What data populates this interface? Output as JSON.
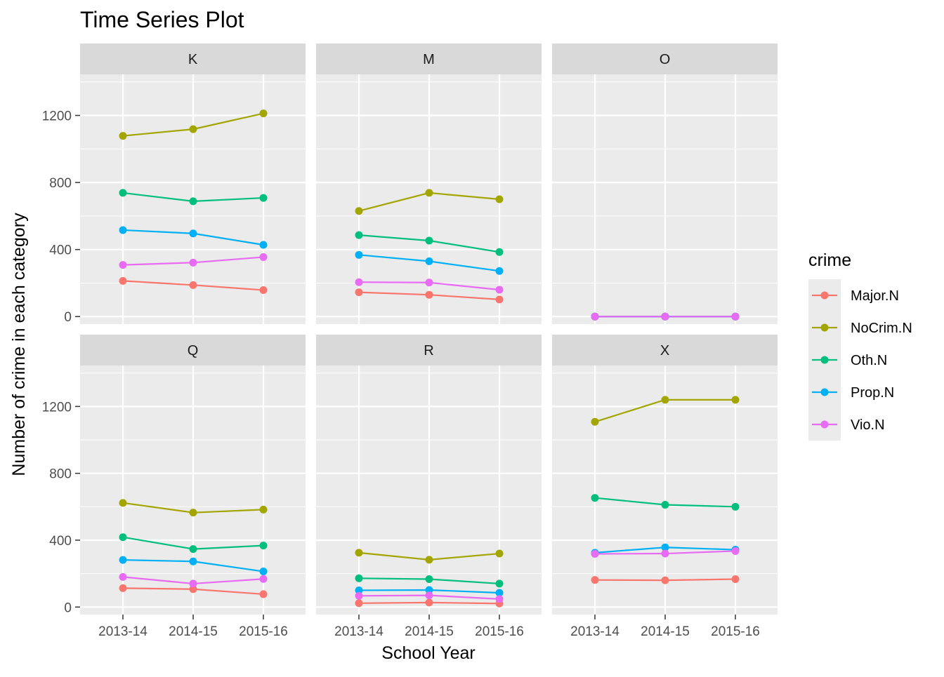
{
  "chart_data": {
    "type": "line",
    "title": "Time Series Plot",
    "xlabel": "School Year",
    "ylabel": "Number of crime in each category",
    "categories": [
      "2013-14",
      "2014-15",
      "2015-16"
    ],
    "ylim": [
      -45,
      1445
    ],
    "yticks": [
      0,
      400,
      800,
      1200
    ],
    "grid": true,
    "legend": {
      "title": "crime",
      "position": "right",
      "items": [
        {
          "name": "Major.N",
          "color": "#F8766D"
        },
        {
          "name": "NoCrim.N",
          "color": "#A3A500"
        },
        {
          "name": "Oth.N",
          "color": "#00BF7D"
        },
        {
          "name": "Prop.N",
          "color": "#00B0F6"
        },
        {
          "name": "Vio.N",
          "color": "#E76BF3"
        }
      ]
    },
    "facets": [
      {
        "name": "K",
        "series": [
          {
            "name": "Major.N",
            "values": [
              213,
              188,
              158
            ]
          },
          {
            "name": "NoCrim.N",
            "values": [
              1078,
              1118,
              1212
            ]
          },
          {
            "name": "Oth.N",
            "values": [
              738,
              688,
              708
            ]
          },
          {
            "name": "Prop.N",
            "values": [
              516,
              496,
              428
            ]
          },
          {
            "name": "Vio.N",
            "values": [
              308,
              322,
              355
            ]
          }
        ]
      },
      {
        "name": "M",
        "series": [
          {
            "name": "Major.N",
            "values": [
              145,
              130,
              102
            ]
          },
          {
            "name": "NoCrim.N",
            "values": [
              630,
              738,
              700
            ]
          },
          {
            "name": "Oth.N",
            "values": [
              486,
              453,
              385
            ]
          },
          {
            "name": "Prop.N",
            "values": [
              368,
              330,
              272
            ]
          },
          {
            "name": "Vio.N",
            "values": [
              205,
              203,
              160
            ]
          }
        ]
      },
      {
        "name": "O",
        "series": [
          {
            "name": "Major.N",
            "values": [
              0,
              0,
              0
            ]
          },
          {
            "name": "NoCrim.N",
            "values": [
              0,
              0,
              0
            ]
          },
          {
            "name": "Oth.N",
            "values": [
              0,
              0,
              0
            ]
          },
          {
            "name": "Prop.N",
            "values": [
              0,
              0,
              0
            ]
          },
          {
            "name": "Vio.N",
            "values": [
              0,
              0,
              0
            ]
          }
        ]
      },
      {
        "name": "Q",
        "series": [
          {
            "name": "Major.N",
            "values": [
              113,
              107,
              77
            ]
          },
          {
            "name": "NoCrim.N",
            "values": [
              623,
              565,
              583
            ]
          },
          {
            "name": "Oth.N",
            "values": [
              418,
              347,
              368
            ]
          },
          {
            "name": "Prop.N",
            "values": [
              282,
              273,
              213
            ]
          },
          {
            "name": "Vio.N",
            "values": [
              180,
              140,
              168
            ]
          }
        ]
      },
      {
        "name": "R",
        "series": [
          {
            "name": "Major.N",
            "values": [
              23,
              27,
              21
            ]
          },
          {
            "name": "NoCrim.N",
            "values": [
              325,
              283,
              320
            ]
          },
          {
            "name": "Oth.N",
            "values": [
              172,
              167,
              140
            ]
          },
          {
            "name": "Prop.N",
            "values": [
              100,
              102,
              85
            ]
          },
          {
            "name": "Vio.N",
            "values": [
              67,
              70,
              48
            ]
          }
        ]
      },
      {
        "name": "X",
        "series": [
          {
            "name": "Major.N",
            "values": [
              162,
              160,
              167
            ]
          },
          {
            "name": "NoCrim.N",
            "values": [
              1108,
              1240,
              1240
            ]
          },
          {
            "name": "Oth.N",
            "values": [
              653,
              612,
              600
            ]
          },
          {
            "name": "Prop.N",
            "values": [
              325,
              357,
              343
            ]
          },
          {
            "name": "Vio.N",
            "values": [
              318,
              320,
              335
            ]
          }
        ]
      }
    ]
  }
}
